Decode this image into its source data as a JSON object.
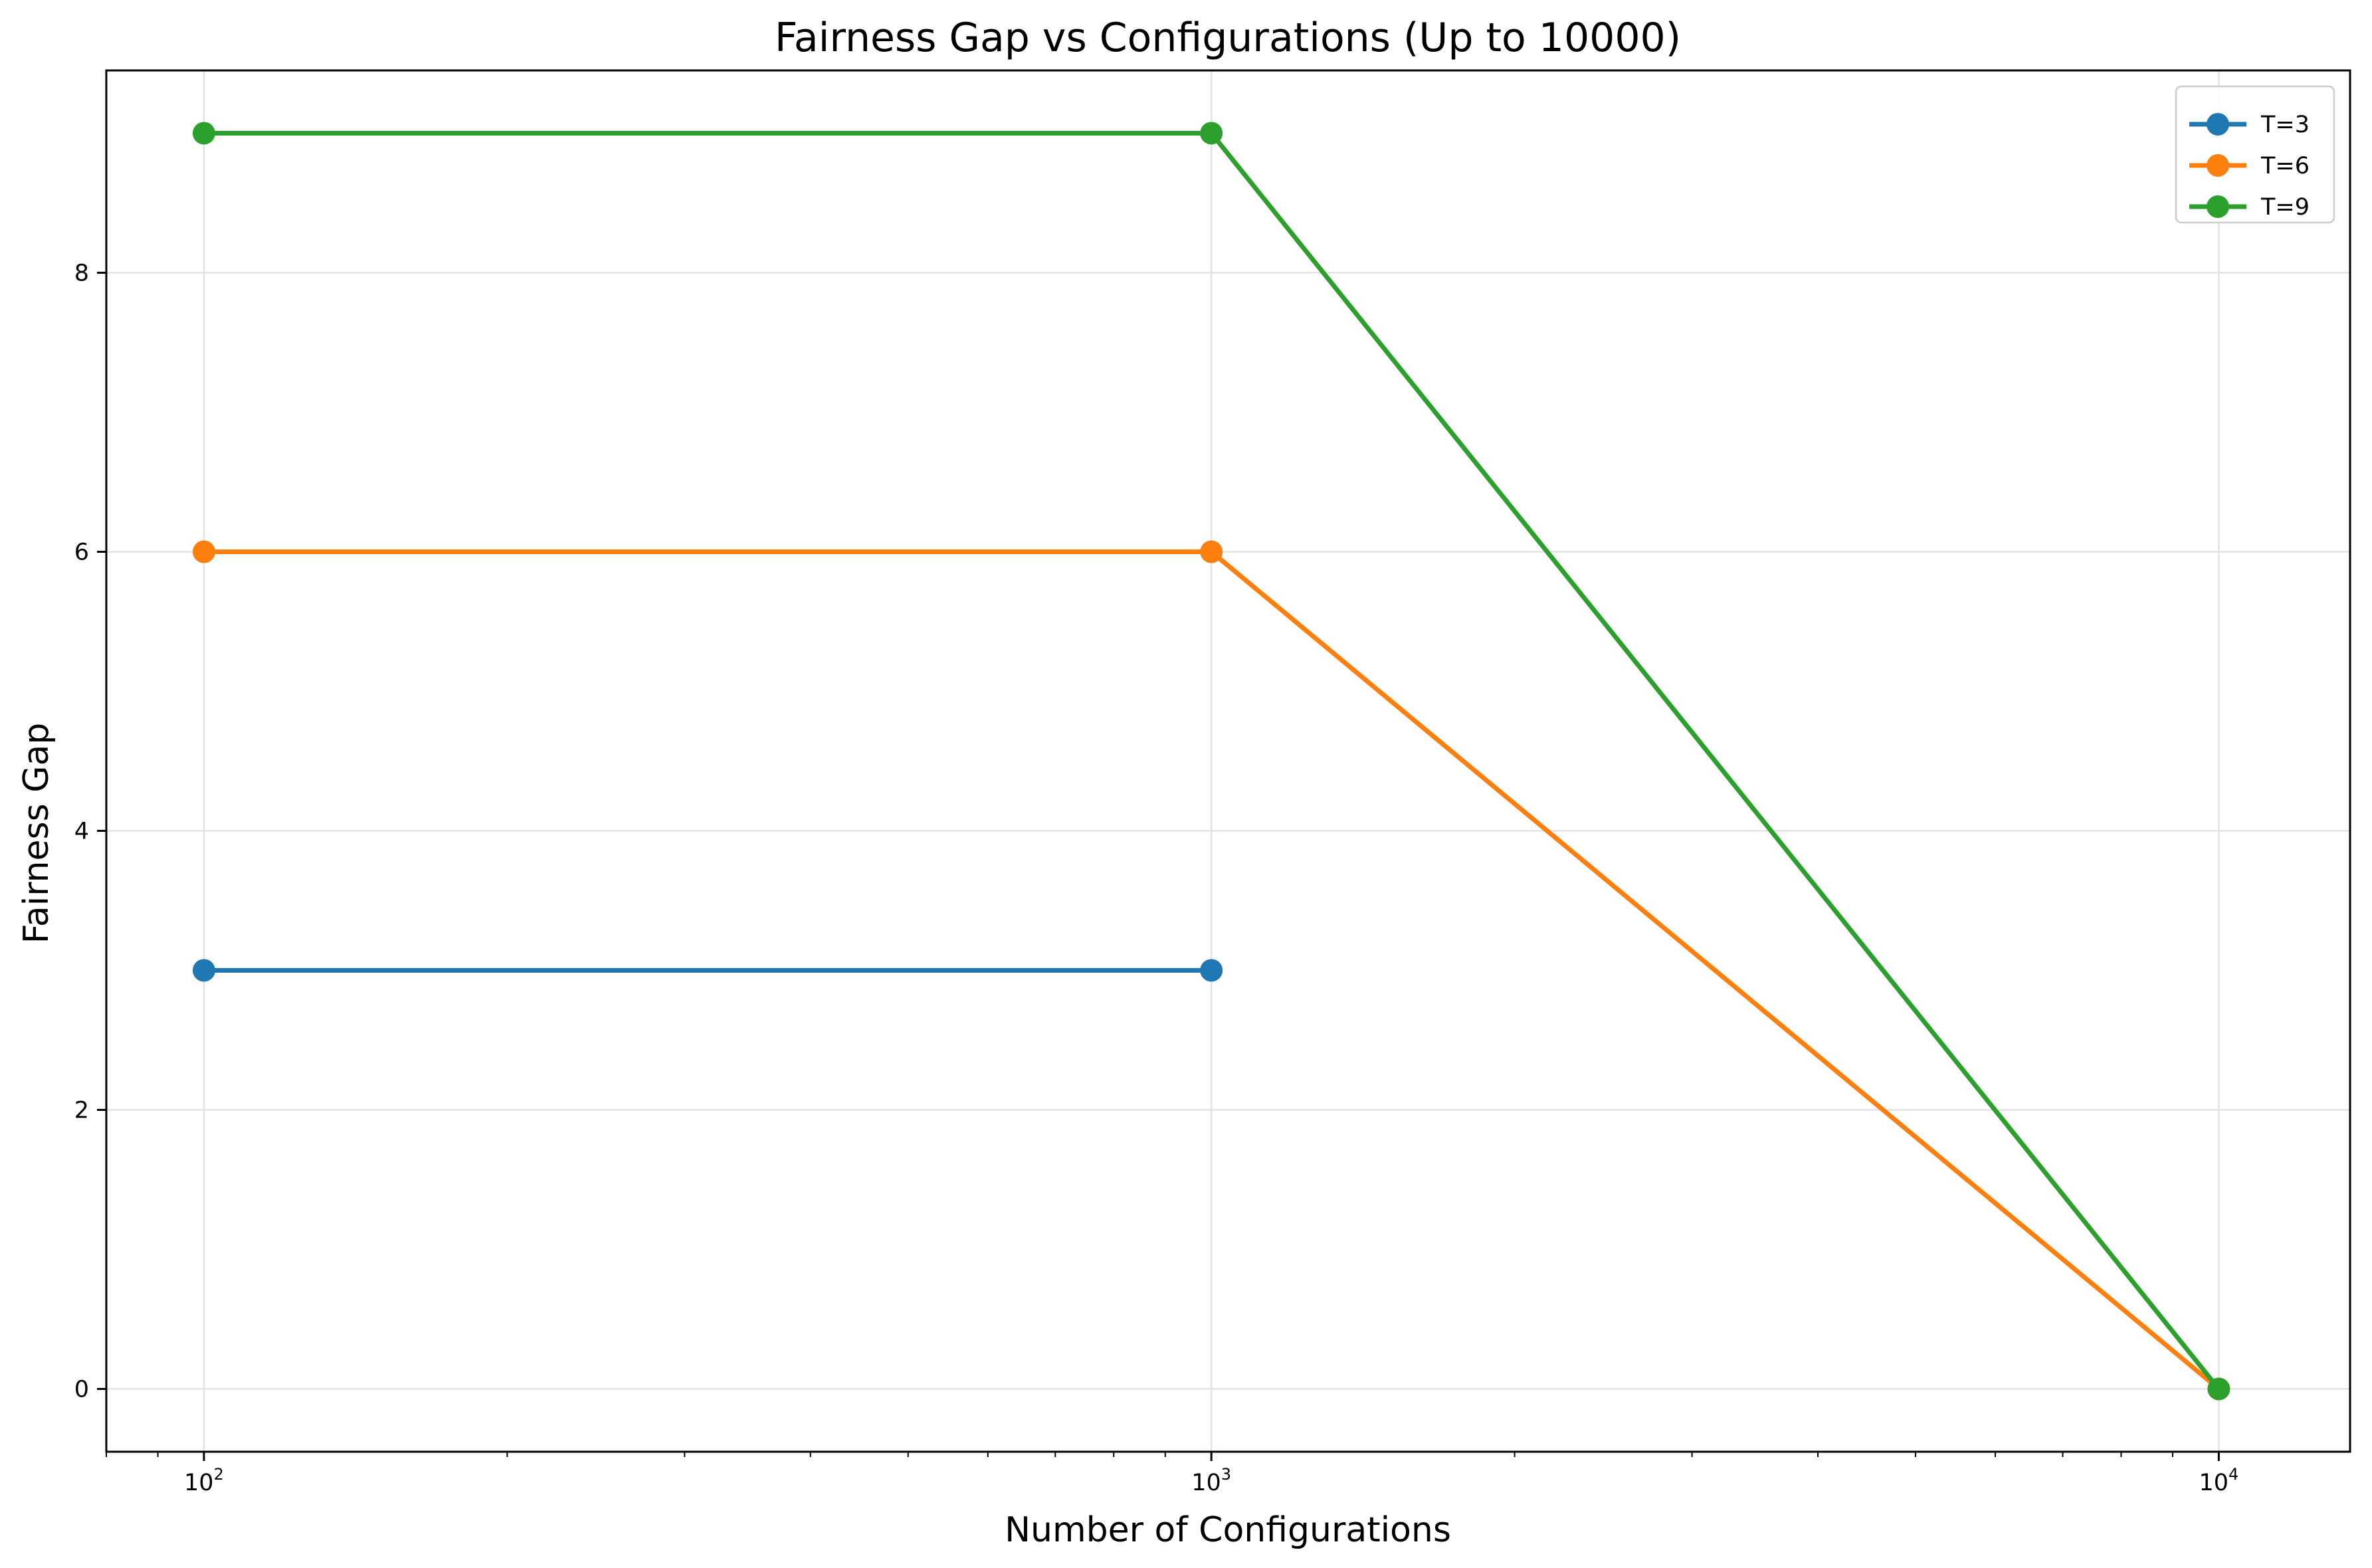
{
  "chart_data": {
    "type": "line",
    "title": "Fairness Gap vs Configurations (Up to 10000)",
    "xlabel": "Number of Configurations",
    "ylabel": "Fairness Gap",
    "x_scale": "log",
    "xlim": [
      80,
      13500
    ],
    "ylim": [
      -0.45,
      9.45
    ],
    "x_ticks": [
      {
        "value": 100,
        "base": "10",
        "exp": "2"
      },
      {
        "value": 1000,
        "base": "10",
        "exp": "3"
      },
      {
        "value": 10000,
        "base": "10",
        "exp": "4"
      }
    ],
    "y_ticks": [
      0,
      2,
      4,
      6,
      8
    ],
    "grid": true,
    "legend_position": "top-right",
    "series": [
      {
        "name": "T=3",
        "color": "#1f77b4",
        "x": [
          100,
          1000
        ],
        "y": [
          3,
          3
        ]
      },
      {
        "name": "T=6",
        "color": "#ff7f0e",
        "x": [
          100,
          1000,
          10000
        ],
        "y": [
          6,
          6,
          0
        ]
      },
      {
        "name": "T=9",
        "color": "#2ca02c",
        "x": [
          100,
          1000,
          10000
        ],
        "y": [
          9,
          9,
          0
        ]
      }
    ]
  }
}
